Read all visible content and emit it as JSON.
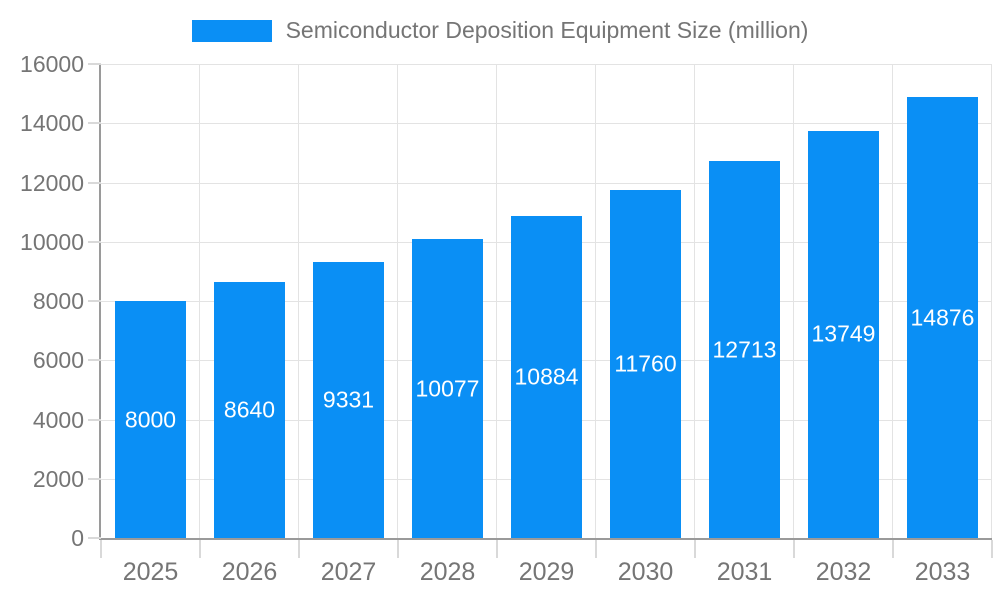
{
  "chart_data": {
    "type": "bar",
    "title": "",
    "legend": "Semiconductor Deposition Equipment Size (million)",
    "legend_position": "top",
    "categories": [
      "2025",
      "2026",
      "2027",
      "2028",
      "2029",
      "2030",
      "2031",
      "2032",
      "2033"
    ],
    "series": [
      {
        "name": "Semiconductor Deposition Equipment Size (million)",
        "values": [
          8000,
          8640,
          9331,
          10077,
          10884,
          11760,
          12713,
          13749,
          14876
        ]
      }
    ],
    "value_labels": [
      "8000",
      "8640",
      "9331",
      "10077",
      "10884",
      "11760",
      "12713",
      "13749",
      "14876"
    ],
    "xlabel": "",
    "ylabel": "",
    "ylim": [
      0,
      16000
    ],
    "ytick_step": 2000,
    "ytick_labels": [
      "0",
      "2000",
      "4000",
      "6000",
      "8000",
      "10000",
      "12000",
      "14000",
      "16000"
    ],
    "grid": true,
    "colors": {
      "bar": "#0A8FF5",
      "bar_value_text": "#ffffff",
      "axis_line": "#9a9a9a",
      "gridline": "#e3e3e3",
      "tick": "#d9d9d9",
      "axis_text": "#757575",
      "background": "#ffffff"
    }
  }
}
